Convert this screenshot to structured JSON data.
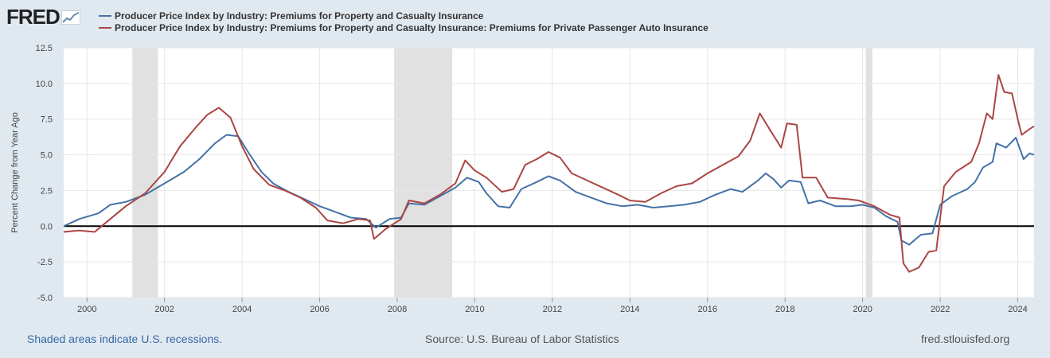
{
  "brand": {
    "logo_text": "FRED"
  },
  "legend": [
    {
      "label": "Producer Price Index by Industry: Premiums for Property and Casualty Insurance",
      "color": "#4572a7"
    },
    {
      "label": "Producer Price Index by Industry: Premiums for Property and Casualty Insurance: Premiums for Private Passenger Auto Insurance",
      "color": "#aa4643"
    }
  ],
  "footer": {
    "left": "Shaded areas indicate U.S. recessions.",
    "center": "Source: U.S. Bureau of Labor Statistics",
    "right": "fred.stlouisfed.org"
  },
  "chart_data": {
    "type": "line",
    "title": "",
    "xlabel": "",
    "ylabel": "Percent Change from Year Ago",
    "xlim": [
      1999.4,
      2024.42
    ],
    "ylim": [
      -5.0,
      12.5
    ],
    "x_ticks": [
      "2000",
      "2002",
      "2004",
      "2006",
      "2008",
      "2010",
      "2012",
      "2014",
      "2016",
      "2018",
      "2020",
      "2022",
      "2024"
    ],
    "y_ticks": [
      "12.5",
      "10.0",
      "7.5",
      "5.0",
      "2.5",
      "0.0",
      "-2.5",
      "-5.0"
    ],
    "grid": true,
    "zero_line": true,
    "recessions": [
      [
        2001.17,
        2001.83
      ],
      [
        2007.92,
        2009.42
      ],
      [
        2020.08,
        2020.25
      ]
    ],
    "series": [
      {
        "name": "Producer Price Index by Industry: Premiums for Property and Casualty Insurance",
        "color": "#4572a7",
        "points": [
          [
            1999.4,
            0.0
          ],
          [
            1999.8,
            0.5
          ],
          [
            2000.3,
            0.9
          ],
          [
            2000.6,
            1.5
          ],
          [
            2001.0,
            1.7
          ],
          [
            2001.5,
            2.2
          ],
          [
            2002.0,
            3.0
          ],
          [
            2002.5,
            3.8
          ],
          [
            2002.9,
            4.7
          ],
          [
            2003.3,
            5.8
          ],
          [
            2003.6,
            6.4
          ],
          [
            2003.9,
            6.3
          ],
          [
            2004.2,
            5.0
          ],
          [
            2004.5,
            3.8
          ],
          [
            2004.8,
            3.0
          ],
          [
            2005.2,
            2.4
          ],
          [
            2005.6,
            1.9
          ],
          [
            2006.0,
            1.4
          ],
          [
            2006.4,
            1.0
          ],
          [
            2006.8,
            0.6
          ],
          [
            2007.2,
            0.5
          ],
          [
            2007.45,
            -0.1
          ],
          [
            2007.8,
            0.5
          ],
          [
            2008.1,
            0.6
          ],
          [
            2008.3,
            1.6
          ],
          [
            2008.7,
            1.5
          ],
          [
            2009.1,
            2.1
          ],
          [
            2009.5,
            2.7
          ],
          [
            2009.8,
            3.4
          ],
          [
            2010.1,
            3.1
          ],
          [
            2010.3,
            2.3
          ],
          [
            2010.6,
            1.4
          ],
          [
            2010.9,
            1.3
          ],
          [
            2011.2,
            2.6
          ],
          [
            2011.6,
            3.1
          ],
          [
            2011.9,
            3.5
          ],
          [
            2012.2,
            3.2
          ],
          [
            2012.6,
            2.4
          ],
          [
            2013.0,
            2.0
          ],
          [
            2013.4,
            1.6
          ],
          [
            2013.8,
            1.4
          ],
          [
            2014.2,
            1.5
          ],
          [
            2014.6,
            1.3
          ],
          [
            2015.0,
            1.4
          ],
          [
            2015.4,
            1.5
          ],
          [
            2015.8,
            1.7
          ],
          [
            2016.2,
            2.2
          ],
          [
            2016.6,
            2.6
          ],
          [
            2016.9,
            2.4
          ],
          [
            2017.3,
            3.2
          ],
          [
            2017.5,
            3.7
          ],
          [
            2017.7,
            3.3
          ],
          [
            2017.9,
            2.7
          ],
          [
            2018.1,
            3.2
          ],
          [
            2018.4,
            3.1
          ],
          [
            2018.6,
            1.6
          ],
          [
            2018.9,
            1.8
          ],
          [
            2019.3,
            1.4
          ],
          [
            2019.7,
            1.4
          ],
          [
            2020.0,
            1.5
          ],
          [
            2020.3,
            1.3
          ],
          [
            2020.6,
            0.7
          ],
          [
            2020.9,
            0.3
          ],
          [
            2021.0,
            -1.0
          ],
          [
            2021.2,
            -1.3
          ],
          [
            2021.5,
            -0.6
          ],
          [
            2021.8,
            -0.5
          ],
          [
            2022.0,
            1.5
          ],
          [
            2022.3,
            2.1
          ],
          [
            2022.7,
            2.6
          ],
          [
            2022.9,
            3.1
          ],
          [
            2023.1,
            4.1
          ],
          [
            2023.35,
            4.5
          ],
          [
            2023.45,
            5.8
          ],
          [
            2023.7,
            5.5
          ],
          [
            2023.95,
            6.2
          ],
          [
            2024.15,
            4.7
          ],
          [
            2024.3,
            5.1
          ],
          [
            2024.42,
            5.0
          ]
        ]
      },
      {
        "name": "Producer Price Index by Industry: Premiums for Property and Casualty Insurance: Premiums for Private Passenger Auto Insurance",
        "color": "#aa4643",
        "points": [
          [
            1999.4,
            -0.4
          ],
          [
            1999.8,
            -0.3
          ],
          [
            2000.2,
            -0.4
          ],
          [
            2000.6,
            0.5
          ],
          [
            2001.0,
            1.4
          ],
          [
            2001.5,
            2.3
          ],
          [
            2002.0,
            3.8
          ],
          [
            2002.4,
            5.6
          ],
          [
            2002.8,
            6.9
          ],
          [
            2003.1,
            7.8
          ],
          [
            2003.4,
            8.3
          ],
          [
            2003.7,
            7.6
          ],
          [
            2004.0,
            5.6
          ],
          [
            2004.3,
            4.0
          ],
          [
            2004.7,
            2.9
          ],
          [
            2005.1,
            2.5
          ],
          [
            2005.5,
            2.0
          ],
          [
            2005.9,
            1.3
          ],
          [
            2006.2,
            0.4
          ],
          [
            2006.6,
            0.2
          ],
          [
            2007.0,
            0.5
          ],
          [
            2007.3,
            0.4
          ],
          [
            2007.4,
            -0.9
          ],
          [
            2007.7,
            -0.2
          ],
          [
            2008.1,
            0.5
          ],
          [
            2008.3,
            1.8
          ],
          [
            2008.7,
            1.6
          ],
          [
            2009.1,
            2.2
          ],
          [
            2009.5,
            3.0
          ],
          [
            2009.75,
            4.6
          ],
          [
            2010.0,
            3.9
          ],
          [
            2010.3,
            3.4
          ],
          [
            2010.7,
            2.4
          ],
          [
            2011.0,
            2.6
          ],
          [
            2011.3,
            4.3
          ],
          [
            2011.6,
            4.7
          ],
          [
            2011.9,
            5.2
          ],
          [
            2012.2,
            4.8
          ],
          [
            2012.5,
            3.7
          ],
          [
            2012.9,
            3.2
          ],
          [
            2013.3,
            2.7
          ],
          [
            2013.7,
            2.2
          ],
          [
            2014.0,
            1.8
          ],
          [
            2014.4,
            1.7
          ],
          [
            2014.8,
            2.3
          ],
          [
            2015.2,
            2.8
          ],
          [
            2015.6,
            3.0
          ],
          [
            2016.0,
            3.7
          ],
          [
            2016.4,
            4.3
          ],
          [
            2016.8,
            4.9
          ],
          [
            2017.1,
            6.0
          ],
          [
            2017.35,
            7.9
          ],
          [
            2017.6,
            6.8
          ],
          [
            2017.9,
            5.5
          ],
          [
            2018.05,
            7.2
          ],
          [
            2018.3,
            7.1
          ],
          [
            2018.45,
            3.4
          ],
          [
            2018.8,
            3.4
          ],
          [
            2019.1,
            2.0
          ],
          [
            2019.6,
            1.9
          ],
          [
            2019.9,
            1.8
          ],
          [
            2020.3,
            1.4
          ],
          [
            2020.7,
            0.8
          ],
          [
            2020.95,
            0.6
          ],
          [
            2021.05,
            -2.6
          ],
          [
            2021.2,
            -3.2
          ],
          [
            2021.45,
            -2.9
          ],
          [
            2021.7,
            -1.8
          ],
          [
            2021.9,
            -1.7
          ],
          [
            2022.0,
            0.6
          ],
          [
            2022.1,
            2.8
          ],
          [
            2022.4,
            3.8
          ],
          [
            2022.8,
            4.5
          ],
          [
            2023.0,
            5.8
          ],
          [
            2023.2,
            7.9
          ],
          [
            2023.35,
            7.5
          ],
          [
            2023.5,
            10.6
          ],
          [
            2023.65,
            9.4
          ],
          [
            2023.85,
            9.3
          ],
          [
            2024.0,
            7.5
          ],
          [
            2024.1,
            6.4
          ],
          [
            2024.3,
            6.8
          ],
          [
            2024.42,
            7.0
          ]
        ]
      }
    ]
  }
}
